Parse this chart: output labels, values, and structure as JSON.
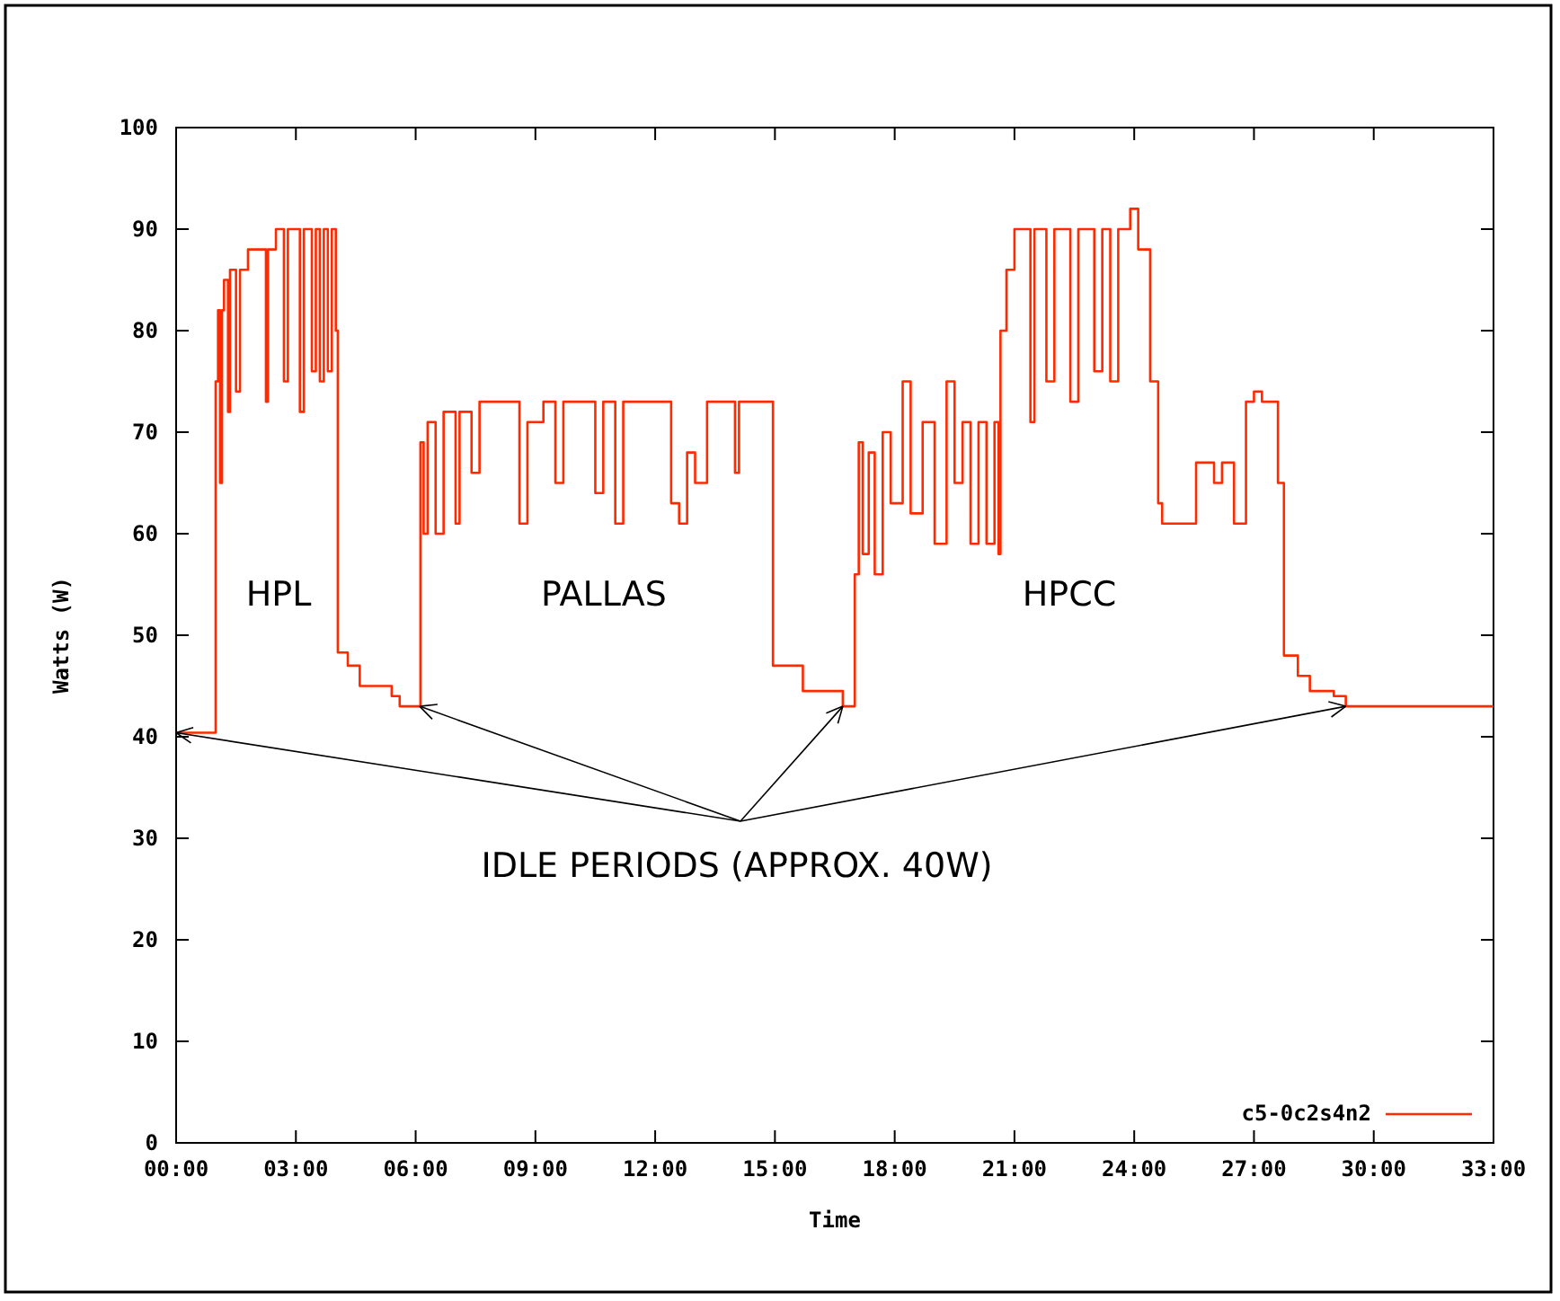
{
  "chart_data": {
    "type": "step",
    "xlabel": "Time",
    "ylabel": "Watts (W)",
    "xlim": [
      0,
      33
    ],
    "ylim": [
      0,
      100
    ],
    "xticks": [
      {
        "value": 0,
        "label": "00:00"
      },
      {
        "value": 3,
        "label": "03:00"
      },
      {
        "value": 6,
        "label": "06:00"
      },
      {
        "value": 9,
        "label": "09:00"
      },
      {
        "value": 12,
        "label": "12:00"
      },
      {
        "value": 15,
        "label": "15:00"
      },
      {
        "value": 18,
        "label": "18:00"
      },
      {
        "value": 21,
        "label": "21:00"
      },
      {
        "value": 24,
        "label": "24:00"
      },
      {
        "value": 27,
        "label": "27:00"
      },
      {
        "value": 30,
        "label": "30:00"
      },
      {
        "value": 33,
        "label": "33:00"
      }
    ],
    "yticks": [
      0,
      10,
      20,
      30,
      40,
      50,
      60,
      70,
      80,
      90,
      100
    ],
    "grid": false,
    "legend": "bottom right",
    "series": [
      {
        "name": "c5-0c2s4n2",
        "color": "#ff2a00",
        "x": [
          0,
          0.99,
          0.99,
          1.05,
          1.1,
          1.15,
          1.2,
          1.3,
          1.35,
          1.5,
          1.6,
          1.8,
          2.2,
          2.25,
          2.3,
          2.5,
          2.7,
          2.8,
          3.1,
          3.2,
          3.4,
          3.5,
          3.6,
          3.7,
          3.8,
          3.9,
          4.0,
          4.05,
          4.3,
          4.6,
          5.4,
          5.6,
          6.1,
          6.12,
          6.2,
          6.3,
          6.5,
          6.7,
          7.0,
          7.1,
          7.4,
          7.6,
          8.5,
          8.6,
          8.8,
          9.2,
          9.5,
          9.7,
          10.4,
          10.5,
          10.7,
          11.0,
          11.2,
          12.2,
          12.4,
          12.6,
          12.8,
          13.0,
          13.3,
          13.9,
          14.0,
          14.1,
          14.9,
          14.95,
          15.7,
          16.6,
          16.7,
          16.95,
          17.0,
          17.1,
          17.2,
          17.35,
          17.5,
          17.7,
          17.9,
          18.2,
          18.4,
          18.7,
          19.0,
          19.3,
          19.5,
          19.7,
          19.9,
          20.1,
          20.3,
          20.5,
          20.6,
          20.65,
          20.8,
          21.0,
          21.4,
          21.5,
          21.8,
          22.0,
          22.4,
          22.6,
          23.0,
          23.2,
          23.4,
          23.6,
          23.9,
          24.1,
          24.4,
          24.6,
          24.7,
          25.5,
          25.55,
          26.0,
          26.2,
          26.5,
          26.8,
          27.0,
          27.2,
          27.6,
          27.75,
          28.1,
          28.4,
          29.0,
          29.3,
          33
        ],
        "values": [
          40.4,
          40.4,
          75,
          82,
          65,
          82,
          85,
          72,
          86,
          74,
          86,
          88,
          88,
          73,
          88,
          90,
          75,
          90,
          72,
          90,
          76,
          90,
          75,
          90,
          76,
          90,
          80,
          48.3,
          47,
          45,
          44,
          43,
          43,
          69,
          60,
          71,
          60,
          72,
          61,
          72,
          66,
          73,
          73,
          61,
          71,
          73,
          65,
          73,
          73,
          64,
          73,
          61,
          73,
          73,
          63,
          61,
          68,
          65,
          73,
          73,
          66,
          73,
          73,
          47,
          44.5,
          44.5,
          43,
          43,
          56,
          69,
          58,
          68,
          56,
          70,
          63,
          75,
          62,
          71,
          59,
          75,
          65,
          71,
          59,
          71,
          59,
          71,
          58,
          80,
          86,
          90,
          71,
          90,
          75,
          90,
          73,
          90,
          76,
          90,
          75,
          90,
          92,
          88,
          75,
          63,
          61,
          61,
          67,
          65,
          67,
          61,
          73,
          74,
          73,
          65,
          48,
          46,
          44.5,
          44,
          43,
          43
        ]
      }
    ],
    "annotations": [
      "HPL",
      "PALLAS",
      "HPCC",
      {
        "text": "IDLE PERIODS (APPROX. 40W)",
        "x": 6.1,
        "y": 43
      }
    ]
  }
}
